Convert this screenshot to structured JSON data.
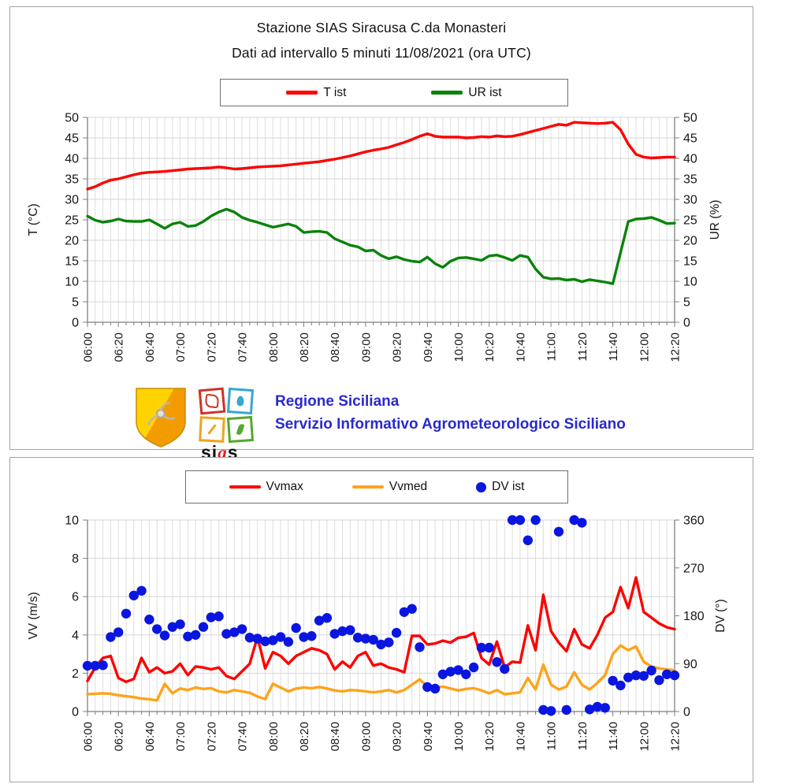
{
  "panel_top": {
    "title": "Stazione SIAS Siracusa C.da Monasteri",
    "subtitle": "Dati ad intervallo 5 minuti 11/08/2021 (ora UTC)",
    "legend": {
      "items": [
        {
          "label": "T ist",
          "color": "#fe0000"
        },
        {
          "label": "UR ist",
          "color": "#0a830a"
        }
      ]
    },
    "branding": {
      "line1": "Regione Siciliana",
      "line2": "Servizio Informativo Agrometeorologico Siciliano",
      "logo_text_parts": [
        "si",
        "a",
        "s"
      ],
      "text_color": "#2a2ace"
    }
  },
  "panel_bottom": {
    "legend": {
      "items": [
        {
          "label": "Vvmax",
          "color": "#fe0000",
          "marker": "line"
        },
        {
          "label": "Vvmed",
          "color": "#ffa31a",
          "marker": "line"
        },
        {
          "label": "DV ist",
          "color": "#0a16e0",
          "marker": "dot"
        }
      ]
    }
  },
  "chart_data": [
    {
      "type": "line",
      "title": "Stazione SIAS Siracusa C.da Monasteri",
      "subtitle": "Dati ad intervallo 5 minuti 11/08/2021 (ora UTC)",
      "interval_minutes": 5,
      "x_tick_labels": [
        "06:00",
        "06:20",
        "06:40",
        "07:00",
        "07:20",
        "07:40",
        "08:00",
        "08:20",
        "08:40",
        "09:00",
        "09:20",
        "09:40",
        "10:00",
        "10:20",
        "10:40",
        "11:00",
        "11:20",
        "11:40",
        "12:00",
        "12:20"
      ],
      "x_minor_per_label": 4,
      "ylabel_left": "T (°C)",
      "ylabel_right": "UR (%)",
      "ylim": [
        0,
        50
      ],
      "yticks": [
        0,
        5,
        10,
        15,
        20,
        25,
        30,
        35,
        40,
        45,
        50
      ],
      "grid": true,
      "legend_position": "top",
      "series": [
        {
          "name": "T ist",
          "type": "line",
          "axis": "left",
          "color": "#fe0000",
          "values": [
            32.5,
            33.1,
            34.0,
            34.7,
            35.0,
            35.5,
            36.0,
            36.4,
            36.6,
            36.7,
            36.8,
            37.0,
            37.2,
            37.4,
            37.5,
            37.6,
            37.7,
            37.9,
            37.7,
            37.4,
            37.5,
            37.7,
            37.9,
            38.0,
            38.1,
            38.2,
            38.4,
            38.6,
            38.8,
            39.0,
            39.2,
            39.5,
            39.8,
            40.2,
            40.6,
            41.1,
            41.6,
            42.0,
            42.3,
            42.7,
            43.3,
            43.9,
            44.6,
            45.4,
            46.0,
            45.4,
            45.2,
            45.2,
            45.2,
            45.0,
            45.1,
            45.3,
            45.2,
            45.5,
            45.3,
            45.4,
            45.8,
            46.3,
            46.8,
            47.3,
            47.8,
            48.3,
            48.1,
            48.8,
            48.7,
            48.6,
            48.5,
            48.6,
            48.8,
            47.0,
            43.5,
            41.0,
            40.3,
            40.1,
            40.2,
            40.3,
            40.3
          ]
        },
        {
          "name": "UR ist",
          "type": "line",
          "axis": "left",
          "color": "#0a830a",
          "values": [
            25.9,
            24.9,
            24.4,
            24.7,
            25.2,
            24.7,
            24.6,
            24.6,
            25.0,
            24.0,
            22.9,
            24.0,
            24.4,
            23.4,
            23.6,
            24.6,
            25.9,
            26.9,
            27.6,
            26.9,
            25.6,
            24.9,
            24.4,
            23.8,
            23.2,
            23.6,
            24.0,
            23.4,
            21.9,
            22.1,
            22.2,
            21.9,
            20.4,
            19.6,
            18.8,
            18.4,
            17.4,
            17.6,
            16.3,
            15.5,
            16.0,
            15.3,
            14.9,
            14.7,
            15.9,
            14.3,
            13.4,
            14.9,
            15.7,
            15.8,
            15.5,
            15.1,
            16.2,
            16.4,
            15.8,
            15.1,
            16.3,
            15.9,
            13.0,
            11.0,
            10.6,
            10.7,
            10.3,
            10.5,
            9.9,
            10.4,
            10.1,
            9.8,
            9.4,
            17.0,
            24.6,
            25.2,
            25.3,
            25.6,
            24.9,
            24.1,
            24.2
          ]
        }
      ]
    },
    {
      "type": "line+scatter",
      "interval_minutes": 5,
      "x_tick_labels": [
        "06:00",
        "06:20",
        "06:40",
        "07:00",
        "07:20",
        "07:40",
        "08:00",
        "08:20",
        "08:40",
        "09:00",
        "09:20",
        "09:40",
        "10:00",
        "10:20",
        "10:40",
        "11:00",
        "11:20",
        "11:40",
        "12:00",
        "12:20"
      ],
      "x_minor_per_label": 4,
      "ylabel_left": "VV (m/s)",
      "ylabel_right": "DV (°)",
      "ylim_left": [
        0,
        10
      ],
      "yticks_left": [
        0,
        2,
        4,
        6,
        8,
        10
      ],
      "ylim_right": [
        0,
        360
      ],
      "yticks_right": [
        0,
        90,
        180,
        270,
        360
      ],
      "grid": true,
      "legend_position": "top",
      "series": [
        {
          "name": "Vvmax",
          "type": "line",
          "axis": "left",
          "color": "#fe0000",
          "values": [
            1.6,
            2.3,
            2.8,
            2.9,
            1.75,
            1.55,
            1.7,
            2.8,
            2.05,
            2.3,
            2.0,
            2.1,
            2.5,
            1.9,
            2.35,
            2.3,
            2.2,
            2.3,
            1.85,
            1.7,
            2.1,
            2.5,
            3.9,
            2.25,
            3.1,
            2.9,
            2.5,
            2.9,
            3.1,
            3.3,
            3.2,
            3.0,
            2.2,
            2.6,
            2.3,
            2.9,
            3.1,
            2.4,
            2.5,
            2.3,
            2.2,
            2.05,
            3.95,
            3.95,
            3.5,
            3.55,
            3.7,
            3.6,
            3.85,
            3.9,
            4.1,
            2.8,
            2.45,
            3.65,
            2.3,
            2.6,
            2.55,
            4.5,
            3.2,
            6.1,
            4.2,
            3.6,
            3.15,
            4.3,
            3.5,
            3.3,
            4.0,
            4.9,
            5.2,
            6.5,
            5.4,
            7.0,
            5.2,
            4.9,
            4.6,
            4.4,
            4.3
          ]
        },
        {
          "name": "Vvmed",
          "type": "line",
          "axis": "left",
          "color": "#ffa31a",
          "values": [
            0.9,
            0.93,
            0.95,
            0.92,
            0.85,
            0.8,
            0.75,
            0.68,
            0.64,
            0.58,
            1.45,
            0.95,
            1.2,
            1.12,
            1.25,
            1.18,
            1.22,
            1.05,
            1.0,
            1.12,
            1.05,
            0.98,
            0.78,
            0.65,
            1.45,
            1.25,
            1.05,
            1.2,
            1.25,
            1.22,
            1.28,
            1.2,
            1.1,
            1.05,
            1.12,
            1.1,
            1.05,
            1.0,
            1.05,
            1.12,
            1.0,
            1.12,
            1.4,
            1.68,
            1.3,
            1.25,
            1.3,
            1.2,
            1.1,
            1.18,
            1.22,
            1.1,
            0.95,
            1.12,
            0.9,
            0.95,
            1.0,
            1.75,
            1.15,
            2.45,
            1.4,
            1.15,
            1.3,
            2.05,
            1.4,
            1.15,
            1.5,
            1.9,
            3.0,
            3.45,
            3.2,
            3.4,
            2.6,
            2.35,
            2.25,
            2.2,
            2.15
          ]
        },
        {
          "name": "DV ist",
          "type": "scatter",
          "axis": "right",
          "color": "#0a16e0",
          "values": [
            86,
            86,
            87,
            140,
            149,
            184,
            218,
            227,
            173,
            155,
            143,
            159,
            164,
            141,
            144,
            159,
            177,
            179,
            146,
            149,
            155,
            139,
            137,
            132,
            134,
            140,
            131,
            157,
            140,
            142,
            171,
            176,
            146,
            151,
            153,
            139,
            137,
            135,
            126,
            130,
            148,
            187,
            193,
            121,
            46,
            43,
            70,
            75,
            78,
            70,
            83,
            120,
            120,
            93,
            80,
            360,
            360,
            322,
            360,
            3,
            1,
            338,
            3,
            360,
            355,
            4,
            9,
            7,
            58,
            49,
            64,
            68,
            67,
            77,
            59,
            70,
            68
          ]
        }
      ]
    }
  ]
}
